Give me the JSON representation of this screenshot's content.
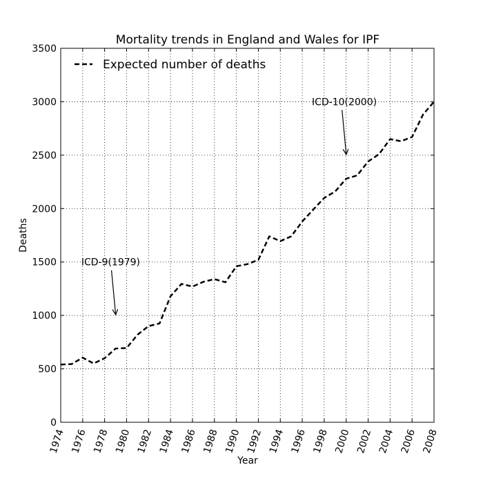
{
  "chart_data": {
    "type": "line",
    "title": "Mortality trends in England and Wales for IPF",
    "xlabel": "Year",
    "ylabel": "Deaths",
    "xlim": [
      1974,
      2008
    ],
    "ylim": [
      0,
      3500
    ],
    "x_ticks": [
      "1974",
      "1976",
      "1978",
      "1980",
      "1982",
      "1984",
      "1986",
      "1988",
      "1990",
      "1992",
      "1994",
      "1996",
      "1998",
      "2000",
      "2002",
      "2004",
      "2006",
      "2008"
    ],
    "y_ticks": [
      "0",
      "500",
      "1000",
      "1500",
      "2000",
      "2500",
      "3000",
      "3500"
    ],
    "grid": true,
    "legend_position": "top-left",
    "series": [
      {
        "name": "Expected number of deaths",
        "line_style": "dashed",
        "color": "#000000",
        "x": [
          1974,
          1975,
          1976,
          1977,
          1978,
          1979,
          1980,
          1981,
          1982,
          1983,
          1984,
          1985,
          1986,
          1987,
          1988,
          1989,
          1990,
          1991,
          1992,
          1993,
          1994,
          1995,
          1996,
          1997,
          1998,
          1999,
          2000,
          2001,
          2002,
          2003,
          2004,
          2005,
          2006,
          2007,
          2008
        ],
        "values": [
          540,
          545,
          605,
          550,
          600,
          690,
          695,
          820,
          900,
          925,
          1180,
          1295,
          1270,
          1315,
          1340,
          1310,
          1460,
          1480,
          1520,
          1740,
          1695,
          1740,
          1880,
          1990,
          2100,
          2160,
          2280,
          2310,
          2440,
          2510,
          2650,
          2630,
          2670,
          2880,
          3000
        ]
      }
    ],
    "annotations": [
      {
        "text": "ICD-9(1979)",
        "x": 1976,
        "y": 1500,
        "arrow_to": [
          1979,
          1000
        ]
      },
      {
        "text": "ICD-10(2000)",
        "x": 1997,
        "y": 3000,
        "arrow_to": [
          2000,
          2500
        ]
      }
    ]
  }
}
